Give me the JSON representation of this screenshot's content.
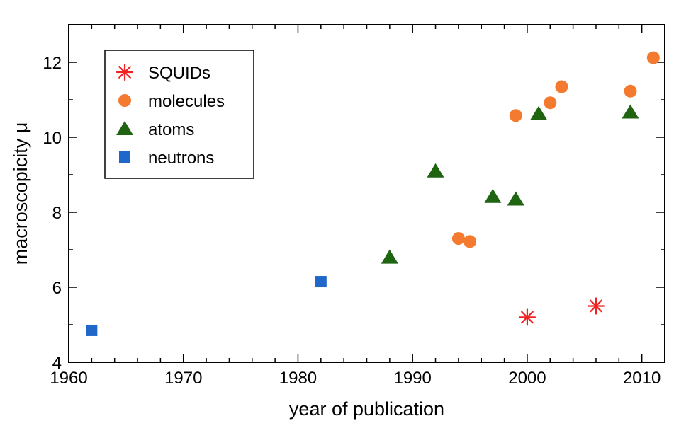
{
  "chart_data": {
    "type": "scatter",
    "title": "",
    "xlabel": "year of publication",
    "ylabel": "macroscopicity μ",
    "xlim": [
      1960,
      2012
    ],
    "ylim": [
      4,
      13
    ],
    "xticks": [
      1960,
      1970,
      1980,
      1990,
      2000,
      2010
    ],
    "yticks": [
      4,
      6,
      8,
      10,
      12
    ],
    "grid": false,
    "legend_position": "top-left",
    "series": [
      {
        "name": "SQUIDs",
        "marker": "asterisk",
        "color": "#ee2222",
        "points": [
          {
            "x": 2000,
            "y": 5.2
          },
          {
            "x": 2006,
            "y": 5.5
          }
        ]
      },
      {
        "name": "molecules",
        "marker": "circle",
        "color": "#f47a30",
        "points": [
          {
            "x": 1994,
            "y": 7.3
          },
          {
            "x": 1995,
            "y": 7.22
          },
          {
            "x": 1999,
            "y": 10.58
          },
          {
            "x": 2002,
            "y": 10.92
          },
          {
            "x": 2003,
            "y": 11.35
          },
          {
            "x": 2009,
            "y": 11.23
          },
          {
            "x": 2011,
            "y": 12.12
          }
        ]
      },
      {
        "name": "atoms",
        "marker": "triangle",
        "color": "#1f6411",
        "points": [
          {
            "x": 1988,
            "y": 6.8
          },
          {
            "x": 1992,
            "y": 9.1
          },
          {
            "x": 1997,
            "y": 8.42
          },
          {
            "x": 1999,
            "y": 8.35
          },
          {
            "x": 2001,
            "y": 10.63
          },
          {
            "x": 2009,
            "y": 10.67
          }
        ]
      },
      {
        "name": "neutrons",
        "marker": "square",
        "color": "#1f68c9",
        "points": [
          {
            "x": 1962,
            "y": 4.85
          },
          {
            "x": 1982,
            "y": 6.15
          }
        ]
      }
    ]
  }
}
